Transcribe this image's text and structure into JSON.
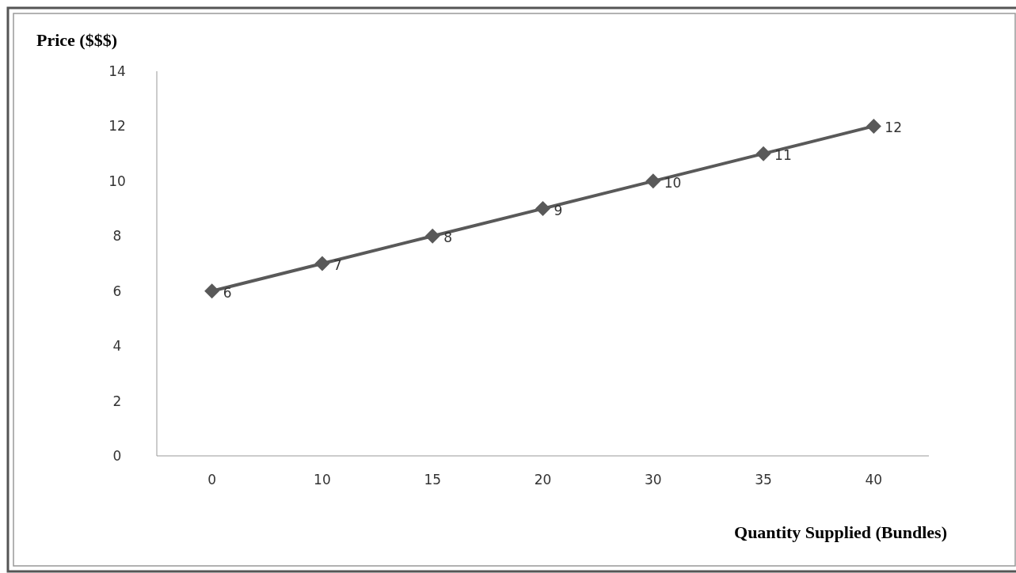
{
  "chart_data": {
    "type": "line",
    "xlabel": "Quantity Supplied (Bundles)",
    "ylabel": "Price ($$$)",
    "categories": [
      "0",
      "10",
      "15",
      "20",
      "30",
      "35",
      "40"
    ],
    "series": [
      {
        "color": "#595959",
        "values": [
          6,
          7,
          8,
          9,
          10,
          11,
          12
        ]
      }
    ],
    "ylim": [
      0,
      14
    ],
    "yticks": [
      0,
      2,
      4,
      6,
      8,
      10,
      12,
      14
    ],
    "marker": "diamond",
    "line_style": "solid",
    "data_labels": true,
    "grid": false
  }
}
